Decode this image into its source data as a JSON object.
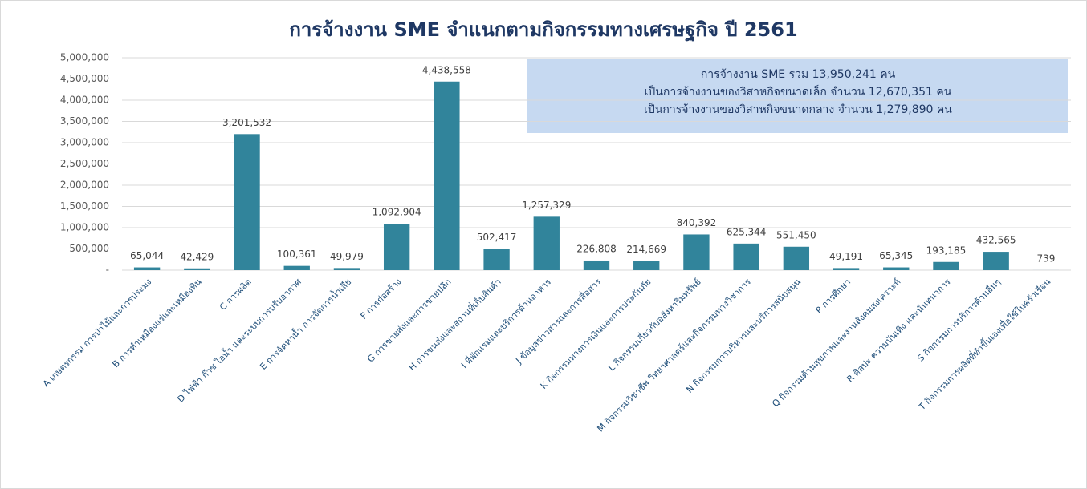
{
  "chart_data": {
    "type": "bar",
    "title": "การจ้างงาน SME จำแนกตามกิจกรรมทางเศรษฐกิจ ปี 2561",
    "annotations": [
      "การจ้างงาน SME รวม 13,950,241 คน",
      "เป็นการจ้างงานของวิสาหกิจขนาดเล็ก จำนวน 12,670,351 คน",
      "เป็นการจ้างงานของวิสาหกิจขนาดกลาง จำนวน 1,279,890 คน"
    ],
    "categories": [
      "A เกษตรกรรม การป่าไม้และการประมง",
      "B การทำเหมืองแร่และเหมืองหิน",
      "C การผลิต",
      "D ไฟฟ้า ก๊าซ ไอน้ำ และระบบการปรับอากาศ",
      "E การจัดหาน้ำ การจัดการน้ำเสีย",
      "F การก่อสร้าง",
      "G การขายส่งและการขายปลีก",
      "H การขนส่งและสถานที่เก็บสินค้า",
      "I ที่พักแรมและบริการด้านอาหาร",
      "J ข้อมูลข่าวสารและการสื่อสาร",
      "K กิจกรรมทางการเงินและการประกันภัย",
      "L กิจกรรมเกี่ยวกับอสังหาริมทรัพย์",
      "M กิจกรรมวิชาชีพ วิทยาศาสตร์และกิจกรรมทางวิชาการ",
      "N กิจกรรมการบริหารและบริการสนับสนุน",
      "P การศึกษา",
      "Q กิจกรรมด้านสุขภาพและงานสังคมสงเคราะห์",
      "R ศิลปะ ความบันเทิง และนันทนาการ",
      "S กิจกรรมการบริการด้านอื่นๆ",
      "T กิจกรรมการผลิตที่ทำขึ้นเองเพื่อใช้ในครัวเรือน"
    ],
    "values": [
      65044,
      42429,
      3201532,
      100361,
      49979,
      1092904,
      4438558,
      502417,
      1257329,
      226808,
      214669,
      840392,
      625344,
      551450,
      49191,
      65345,
      193185,
      432565,
      739
    ],
    "value_labels": [
      "65,044",
      "42,429",
      "3,201,532",
      "100,361",
      "49,979",
      "1,092,904",
      "4,438,558",
      "502,417",
      "1,257,329",
      "226,808",
      "214,669",
      "840,392",
      "625,344",
      "551,450",
      "49,191",
      "65,345",
      "193,185",
      "432,565",
      "739"
    ],
    "color": "#31849b",
    "ylim": [
      0,
      5000000
    ],
    "yticks": [
      {
        "value": 0,
        "label": "-"
      },
      {
        "value": 500000,
        "label": "500,000"
      },
      {
        "value": 1000000,
        "label": "1,000,000"
      },
      {
        "value": 1500000,
        "label": "1,500,000"
      },
      {
        "value": 2000000,
        "label": "2,000,000"
      },
      {
        "value": 2500000,
        "label": "2,500,000"
      },
      {
        "value": 3000000,
        "label": "3,000,000"
      },
      {
        "value": 3500000,
        "label": "3,500,000"
      },
      {
        "value": 4000000,
        "label": "4,000,000"
      },
      {
        "value": 4500000,
        "label": "4,500,000"
      },
      {
        "value": 5000000,
        "label": "5,000,000"
      }
    ],
    "grid": true
  }
}
